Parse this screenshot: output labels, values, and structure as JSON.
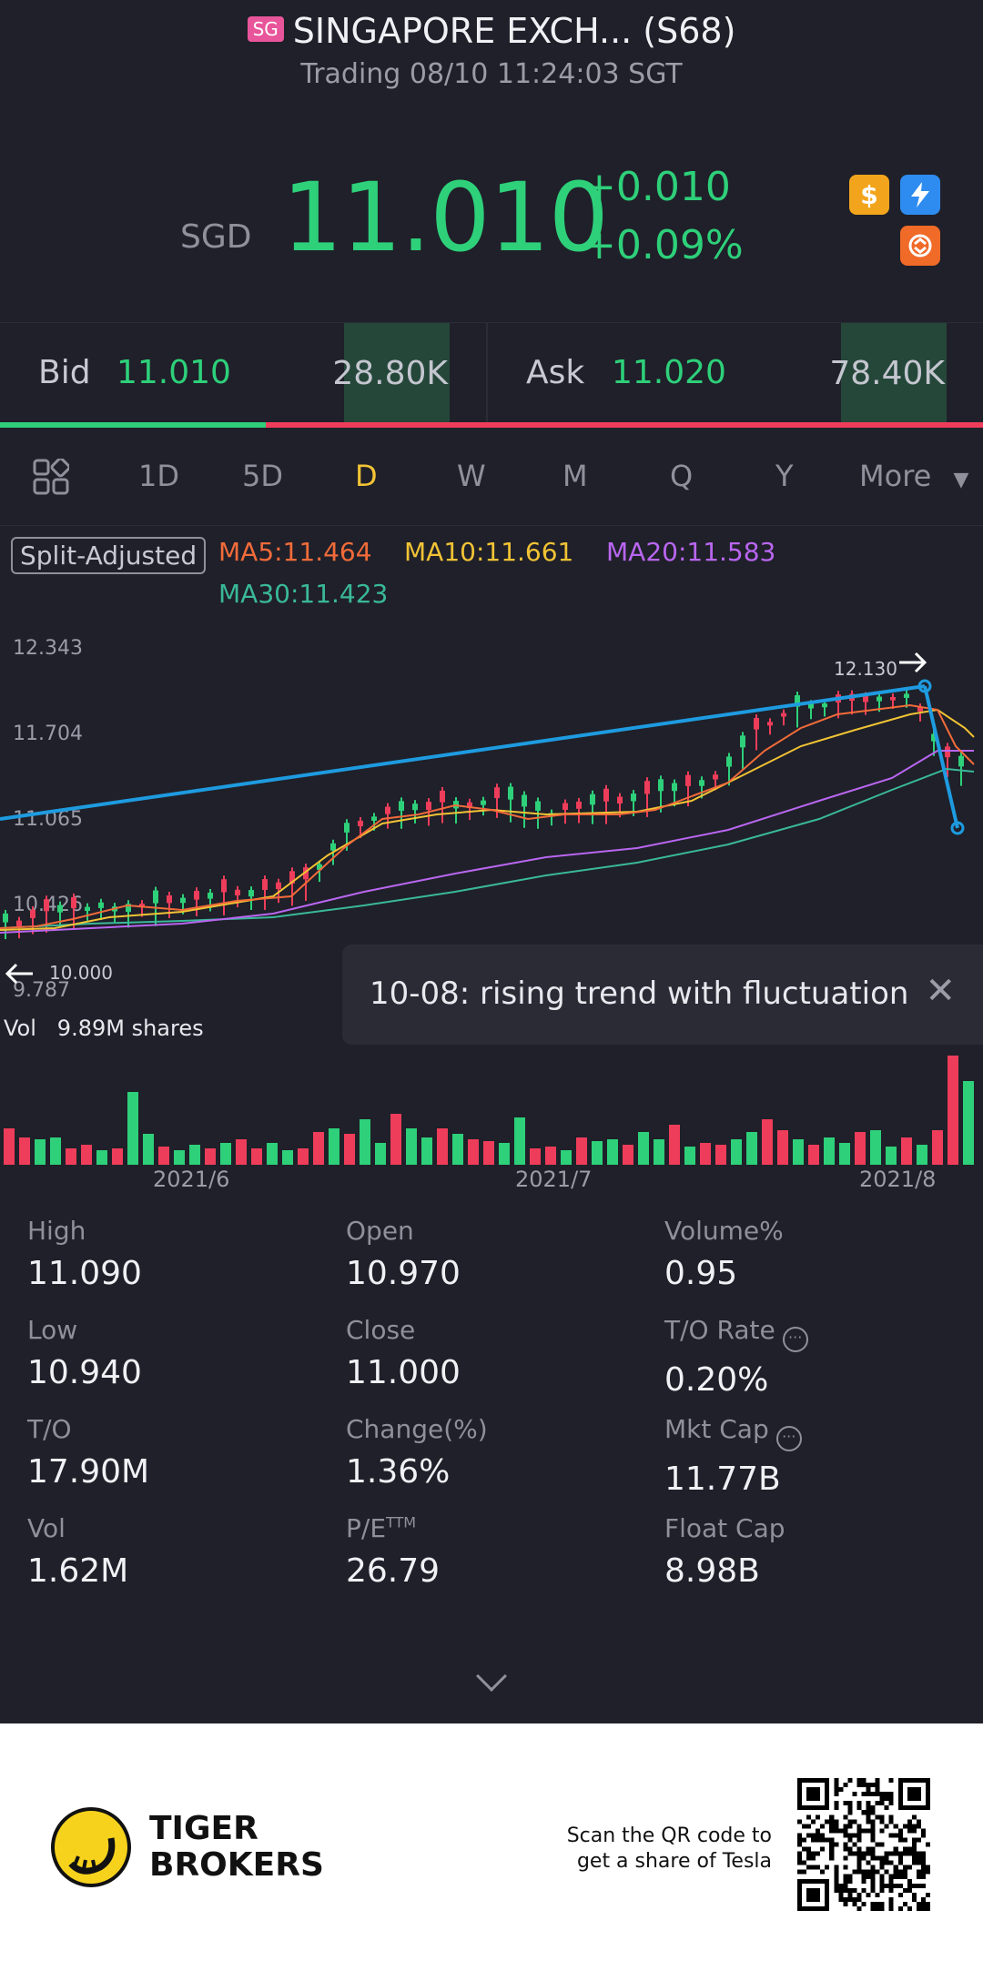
{
  "header": {
    "badge": "SG",
    "name": "SINGAPORE EXCH... (S68)",
    "status_line": "Trading 08/10 11:24:03 SGT",
    "currency": "SGD",
    "price": "11.010",
    "change": "+0.010",
    "change_pct": "+0.09%",
    "icons": [
      "dollar-icon",
      "flash-icon",
      "swap-icon"
    ]
  },
  "bidask": {
    "bid_label": "Bid",
    "bid_price": "11.010",
    "bid_qty": "28.80K",
    "ask_label": "Ask",
    "ask_price": "11.020",
    "ask_qty": "78.40K",
    "bid_ratio": 0.27
  },
  "tabs": {
    "items": [
      "1D",
      "5D",
      "D",
      "W",
      "M",
      "Q",
      "Y",
      "More"
    ],
    "active": "D"
  },
  "indicators": {
    "split_label": "Split-Adjusted",
    "ma5": "MA5:11.464",
    "ma10": "MA10:11.661",
    "ma20": "MA20:11.583",
    "ma30": "MA30:11.423"
  },
  "chart_data": {
    "type": "candlestick",
    "y_ticks": [
      "12.343",
      "11.704",
      "11.065",
      "10.426",
      "9.787"
    ],
    "annotations": [
      "12.130",
      "10.000"
    ],
    "ylim": [
      9.787,
      12.343
    ],
    "colors": {
      "up": "#2ed07a",
      "down": "#ee3d5a",
      "ma5": "#f26b3a",
      "ma10": "#f2c335",
      "ma20": "#b966f0",
      "ma30": "#3ab89a",
      "trend": "#1e9be0"
    },
    "x_labels": [
      "2021/6",
      "2021/7",
      "2021/8"
    ],
    "volume_label": "Vol",
    "volume_value": "9.89M shares"
  },
  "toast": {
    "text": "10-08: rising trend with fluctuation"
  },
  "stats": [
    {
      "k": "High",
      "v": "11.090"
    },
    {
      "k": "Open",
      "v": "10.970"
    },
    {
      "k": "Volume%",
      "v": "0.95"
    },
    {
      "k": "Low",
      "v": "10.940"
    },
    {
      "k": "Close",
      "v": "11.000"
    },
    {
      "k": "T/O Rate",
      "v": "0.20%"
    },
    {
      "k": "T/O",
      "v": "17.90M"
    },
    {
      "k": "Change(%)",
      "v": "1.36%"
    },
    {
      "k": "Mkt Cap",
      "v": "11.77B"
    },
    {
      "k": "Vol",
      "v": "1.62M"
    },
    {
      "k": "P/E",
      "k_sup": "TTM",
      "v": "26.79"
    },
    {
      "k": "Float Cap",
      "v": "8.98B"
    }
  ],
  "footer": {
    "brand_line1": "TIGER",
    "brand_line2": "BROKERS",
    "scan_line1": "Scan the QR code to",
    "scan_line2": "get a share of Tesla"
  }
}
